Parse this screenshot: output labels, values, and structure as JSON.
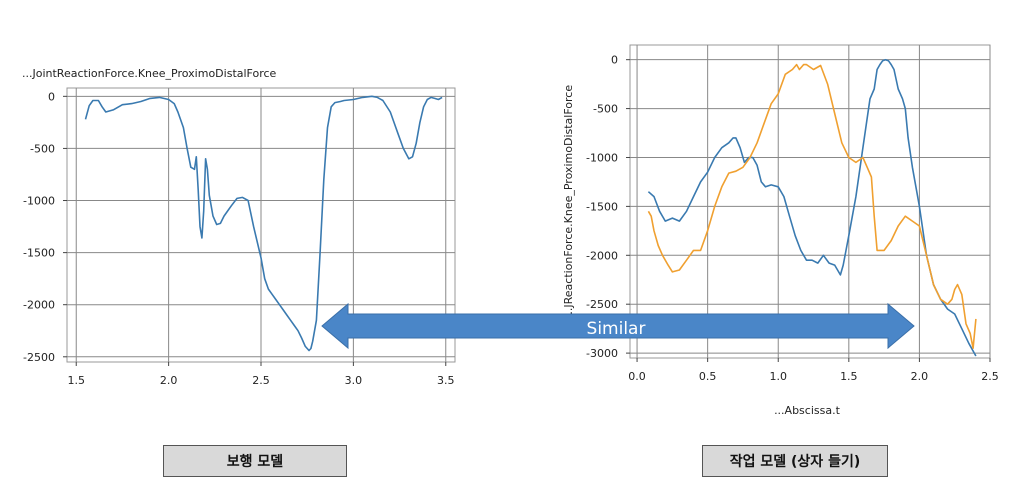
{
  "captions": {
    "left": "보행 모델",
    "right": "작업 모델 (상자 들기)"
  },
  "arrow": {
    "label": "Similar",
    "color": "#4a86c8"
  },
  "chart_data": [
    {
      "type": "line",
      "title": "...JointReactionForce.Knee_ProximoDistalForce",
      "xlabel": "",
      "ylabel": "",
      "xlim": [
        1.45,
        3.55
      ],
      "ylim": [
        -2550,
        80
      ],
      "xticks": [
        "1.5",
        "2.0",
        "2.5",
        "3.0",
        "3.5"
      ],
      "yticks": [
        "0",
        "-500",
        "-1000",
        "-1500",
        "-2000",
        "-2500"
      ],
      "grid": true,
      "series": [
        {
          "color": "#3a7ab0",
          "x": [
            1.55,
            1.57,
            1.59,
            1.62,
            1.64,
            1.66,
            1.7,
            1.75,
            1.8,
            1.85,
            1.9,
            1.95,
            2.0,
            2.03,
            2.05,
            2.08,
            2.1,
            2.12,
            2.14,
            2.15,
            2.16,
            2.17,
            2.18,
            2.19,
            2.2,
            2.21,
            2.22,
            2.24,
            2.26,
            2.28,
            2.3,
            2.32,
            2.34,
            2.37,
            2.4,
            2.43,
            2.46,
            2.5,
            2.52,
            2.54,
            2.56,
            2.58,
            2.6,
            2.62,
            2.64,
            2.66,
            2.68,
            2.7,
            2.72,
            2.74,
            2.76,
            2.77,
            2.78,
            2.8,
            2.82,
            2.84,
            2.86,
            2.88,
            2.9,
            2.93,
            2.95,
            3.0,
            3.05,
            3.1,
            3.13,
            3.16,
            3.2,
            3.24,
            3.27,
            3.3,
            3.32,
            3.34,
            3.36,
            3.38,
            3.4,
            3.42,
            3.44,
            3.46,
            3.48
          ],
          "y": [
            -220,
            -90,
            -40,
            -40,
            -100,
            -150,
            -130,
            -80,
            -70,
            -50,
            -20,
            -10,
            -30,
            -70,
            -150,
            -300,
            -500,
            -680,
            -700,
            -580,
            -900,
            -1250,
            -1360,
            -1100,
            -600,
            -700,
            -950,
            -1150,
            -1230,
            -1220,
            -1150,
            -1100,
            -1050,
            -980,
            -970,
            -1000,
            -1250,
            -1550,
            -1750,
            -1850,
            -1900,
            -1950,
            -2000,
            -2050,
            -2100,
            -2150,
            -2200,
            -2250,
            -2320,
            -2400,
            -2440,
            -2420,
            -2350,
            -2150,
            -1500,
            -800,
            -300,
            -100,
            -60,
            -50,
            -40,
            -30,
            -10,
            0,
            -10,
            -40,
            -150,
            -350,
            -500,
            -600,
            -580,
            -450,
            -250,
            -100,
            -30,
            -10,
            -20,
            -30,
            -10
          ]
        }
      ]
    },
    {
      "type": "line",
      "title": "",
      "xlabel": "...Abscissa.t",
      "ylabel": "...JReactionForce.Knee_ProximoDistalForce",
      "xlim": [
        -0.05,
        2.5
      ],
      "ylim": [
        -3050,
        150
      ],
      "xticks": [
        "0.0",
        "0.5",
        "1.0",
        "1.5",
        "2.0",
        "2.5"
      ],
      "yticks": [
        "0",
        "-500",
        "-1000",
        "-1500",
        "-2000",
        "-2500",
        "-3000"
      ],
      "grid": true,
      "series": [
        {
          "color": "#3a7ab0",
          "x": [
            0.08,
            0.12,
            0.16,
            0.2,
            0.25,
            0.3,
            0.35,
            0.4,
            0.45,
            0.5,
            0.55,
            0.6,
            0.65,
            0.68,
            0.7,
            0.73,
            0.76,
            0.79,
            0.82,
            0.85,
            0.88,
            0.91,
            0.95,
            1.0,
            1.04,
            1.08,
            1.12,
            1.16,
            1.2,
            1.24,
            1.28,
            1.32,
            1.36,
            1.4,
            1.44,
            1.46,
            1.48,
            1.5,
            1.55,
            1.6,
            1.65,
            1.68,
            1.7,
            1.72,
            1.74,
            1.76,
            1.78,
            1.8,
            1.82,
            1.85,
            1.88,
            1.9,
            1.92,
            1.95,
            2.0,
            2.05,
            2.1,
            2.15,
            2.2,
            2.25,
            2.3,
            2.35,
            2.4
          ],
          "y": [
            -1350,
            -1400,
            -1550,
            -1650,
            -1620,
            -1650,
            -1550,
            -1400,
            -1250,
            -1150,
            -1000,
            -900,
            -850,
            -800,
            -800,
            -900,
            -1050,
            -1000,
            -1000,
            -1080,
            -1250,
            -1300,
            -1280,
            -1300,
            -1400,
            -1600,
            -1800,
            -1950,
            -2050,
            -2050,
            -2080,
            -2000,
            -2080,
            -2100,
            -2200,
            -2100,
            -1950,
            -1800,
            -1400,
            -900,
            -400,
            -300,
            -100,
            -50,
            -10,
            0,
            -10,
            -50,
            -100,
            -300,
            -400,
            -500,
            -800,
            -1100,
            -1500,
            -2000,
            -2300,
            -2450,
            -2550,
            -2600,
            -2750,
            -2900,
            -3030
          ]
        },
        {
          "color": "#f0a030",
          "x": [
            0.08,
            0.1,
            0.12,
            0.15,
            0.18,
            0.22,
            0.25,
            0.3,
            0.35,
            0.4,
            0.45,
            0.5,
            0.55,
            0.6,
            0.65,
            0.7,
            0.75,
            0.8,
            0.85,
            0.9,
            0.95,
            1.0,
            1.05,
            1.1,
            1.13,
            1.15,
            1.18,
            1.2,
            1.25,
            1.3,
            1.35,
            1.4,
            1.45,
            1.5,
            1.55,
            1.6,
            1.63,
            1.66,
            1.68,
            1.7,
            1.72,
            1.75,
            1.8,
            1.85,
            1.9,
            1.95,
            2.0,
            2.05,
            2.1,
            2.15,
            2.2,
            2.23,
            2.25,
            2.27,
            2.3,
            2.33,
            2.36,
            2.38,
            2.4
          ],
          "y": [
            -1550,
            -1600,
            -1750,
            -1900,
            -2000,
            -2100,
            -2170,
            -2150,
            -2050,
            -1950,
            -1950,
            -1750,
            -1500,
            -1300,
            -1160,
            -1140,
            -1100,
            -1000,
            -850,
            -650,
            -450,
            -350,
            -150,
            -100,
            -50,
            -100,
            -50,
            -50,
            -100,
            -60,
            -250,
            -550,
            -850,
            -1000,
            -1050,
            -1000,
            -1100,
            -1200,
            -1600,
            -1950,
            -1950,
            -1950,
            -1850,
            -1700,
            -1600,
            -1650,
            -1700,
            -2000,
            -2300,
            -2450,
            -2500,
            -2450,
            -2350,
            -2300,
            -2400,
            -2700,
            -2800,
            -2950,
            -2650
          ]
        }
      ]
    }
  ]
}
